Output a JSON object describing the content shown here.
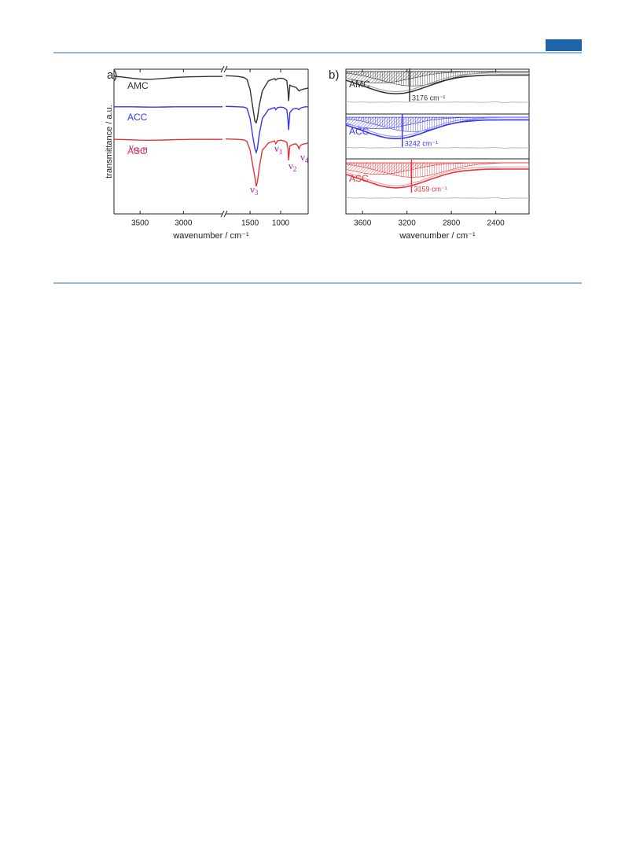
{
  "chart_data": [
    {
      "type": "line",
      "panel": "a)",
      "xlabel": "wavenumber / cm⁻¹",
      "ylabel": "transmittance / a.u.",
      "x": [
        3800,
        3700,
        3600,
        3500,
        3400,
        3300,
        3200,
        3100,
        3000,
        2900,
        2800,
        2700,
        2600,
        2550,
        2200,
        1900,
        1800,
        1700,
        1600,
        1550,
        1500,
        1450,
        1420,
        1400,
        1380,
        1350,
        1300,
        1200,
        1100,
        1080,
        1050,
        1000,
        950,
        900,
        880,
        870,
        860,
        850,
        800,
        750,
        720,
        700,
        680,
        650,
        600,
        550
      ],
      "xlim": [
        3800,
        550
      ],
      "xbreak": [
        2550,
        1900
      ],
      "xticks": [
        3500,
        3000,
        1500,
        1000
      ],
      "ylim": [
        0,
        100
      ],
      "series": [
        {
          "name": "AMC",
          "color": "#333333",
          "values": [
            95.1,
            94.6,
            93.8,
            93.2,
            93.0,
            93.3,
            93.8,
            94.3,
            94.6,
            94.8,
            94.9,
            95,
            95,
            95,
            null,
            95.5,
            95.3,
            95,
            94.3,
            93,
            86,
            72,
            64,
            63,
            66,
            75,
            85,
            92,
            93.5,
            92.5,
            93.5,
            93.8,
            93.5,
            92,
            85,
            78,
            84,
            89,
            88,
            87.5,
            86,
            85,
            85.5,
            86,
            86.5,
            87
          ]
        },
        {
          "name": "ACC",
          "color": "#3535ee",
          "values": [
            74,
            74,
            74,
            73.9,
            73.8,
            73.8,
            73.9,
            74,
            74,
            74,
            74,
            74,
            74,
            74,
            null,
            74.3,
            74.2,
            74,
            73.8,
            73,
            66,
            52,
            45,
            42.5,
            45,
            55,
            66,
            72,
            73.5,
            72,
            73.5,
            73.8,
            73.5,
            72,
            65,
            58,
            64,
            70,
            72.5,
            73,
            72.5,
            72,
            73,
            73.5,
            74,
            74
          ]
        },
        {
          "name": "ASC",
          "color": "#e8333a",
          "values": [
            51.5,
            51.4,
            51.2,
            51,
            50.9,
            51,
            51.1,
            51.3,
            51.4,
            51.5,
            51.5,
            51.5,
            51.5,
            51.5,
            null,
            51.8,
            51.7,
            51.5,
            51.2,
            50,
            44,
            32,
            25,
            19,
            22,
            32,
            44,
            49,
            50.5,
            48.5,
            50.5,
            51,
            50.5,
            49.5,
            45,
            37,
            42,
            47,
            48,
            48.5,
            47,
            45,
            47,
            48,
            48.5,
            49
          ]
        }
      ],
      "annotation_color": "#9b1f9b",
      "annotations": [
        {
          "text": "ν",
          "sub": "O−H"
        },
        {
          "text": "ν",
          "sub": "1"
        },
        {
          "text": "ν",
          "sub": "2"
        },
        {
          "text": "ν",
          "sub": "3"
        },
        {
          "text": "ν",
          "sub": "4"
        }
      ]
    },
    {
      "type": "line",
      "panel": "b)",
      "xlabel": "wavenumber / cm⁻¹",
      "x": [
        3750,
        3675,
        3600,
        3525,
        3450,
        3375,
        3300,
        3225,
        3150,
        3075,
        3000,
        2925,
        2850,
        2775,
        2700,
        2625,
        2550,
        2475,
        2400,
        2325,
        2250,
        2175,
        2100
      ],
      "xlim": [
        3750,
        2100
      ],
      "xticks": [
        3600,
        3200,
        2800,
        2400
      ],
      "ylim": [
        0,
        100
      ],
      "residual_color": "#bbbbbb",
      "series": [
        {
          "name": "AMC",
          "color": "#333333",
          "fit_color": "#aaaaaa",
          "baseline": 98.4,
          "values": [
            92.4,
            90.5,
            88.6,
            86.5,
            84.7,
            83.4,
            83,
            83.4,
            84.7,
            86.5,
            88.6,
            90.5,
            92.4,
            93.7,
            94.7,
            95.2,
            95.6,
            95.9,
            95.9,
            96,
            96,
            96,
            96
          ],
          "fit": [
            93.9,
            92,
            90.1,
            88,
            86.2,
            84.9,
            84.5,
            84.9,
            86.2,
            88,
            90.1,
            92,
            93.9,
            95.2,
            96.2,
            96.7,
            97.1,
            97.4,
            97.4,
            97.5,
            97.5,
            97.5,
            97.5
          ],
          "residual": [
            77.5,
            77.2,
            77.4,
            77,
            77.3,
            77.1,
            77.5,
            77.2,
            77.4,
            77,
            77.3,
            77.2,
            77.1,
            77.4,
            77.2,
            77.3,
            77,
            77.2,
            77.5,
            76.8,
            77.3,
            77.1,
            77.2
          ],
          "components": [
            [
              93.8,
              92.6,
              91.4,
              90.6,
              90.4,
              90.6,
              91.4,
              92.6,
              93.8,
              95,
              96.2,
              97,
              97.6,
              97.9,
              98.2,
              98.3,
              98.3,
              98.4,
              98.4,
              98.4,
              98.4,
              98.4,
              98.4
            ],
            [
              97.4,
              96.6,
              95.6,
              94.2,
              92.7,
              91.1,
              89.7,
              88.7,
              88.4,
              88.7,
              89.7,
              91.1,
              92.7,
              94.2,
              95.6,
              96.6,
              97.4,
              97.8,
              98.1,
              98.3,
              98.3,
              98.4,
              98.4
            ]
          ],
          "marker": {
            "value": 3176,
            "label": "3176 cm⁻¹"
          }
        },
        {
          "name": "ACC",
          "color": "#3535ee",
          "fit_color": "#9fa0ff",
          "baseline": 66.8,
          "values": [
            61.4,
            59.5,
            57.6,
            55.5,
            53.7,
            52.4,
            52,
            52.4,
            53.7,
            55.5,
            57.6,
            59.5,
            61.4,
            62.7,
            63.7,
            64.2,
            64.6,
            64.9,
            64.9,
            65,
            65,
            65,
            65
          ],
          "fit": [
            62.9,
            61,
            59.1,
            57,
            55.2,
            53.9,
            53.5,
            53.9,
            55.2,
            57,
            59.1,
            61,
            62.9,
            64.2,
            65.2,
            65.7,
            66.1,
            66.4,
            66.4,
            66.5,
            66.5,
            66.5,
            66.5
          ],
          "residual": [
            46,
            45.7,
            45.9,
            45.5,
            45.8,
            45.6,
            46,
            45.7,
            45.9,
            45.5,
            45.8,
            45.7,
            45.6,
            45.9,
            45.7,
            45.8,
            45.5,
            45.7,
            46,
            45.3,
            45.8,
            45.6,
            45.7
          ],
          "components": [
            [
              62.2,
              61,
              59.8,
              59,
              58.8,
              59,
              59.8,
              61,
              62.2,
              63.4,
              64.6,
              65.4,
              66,
              66.3,
              66.6,
              66.7,
              66.7,
              66.8,
              66.8,
              66.8,
              66.8,
              66.8,
              66.8
            ],
            [
              65.8,
              65,
              64,
              62.6,
              61.1,
              59.5,
              58.1,
              57.1,
              56.8,
              57.1,
              58.1,
              59.5,
              61.1,
              62.6,
              64,
              65,
              65.8,
              66.2,
              66.5,
              66.7,
              66.7,
              66.8,
              66.8
            ]
          ],
          "marker": {
            "value": 3242,
            "label": "3242 cm⁻¹"
          }
        },
        {
          "name": "ASC",
          "color": "#e8333a",
          "fit_color": "#f4a6a6",
          "baseline": 35.3,
          "values": [
            27.4,
            25.5,
            23.6,
            21.5,
            19.7,
            18.4,
            18,
            18.4,
            19.7,
            21.5,
            23.6,
            25.5,
            27.4,
            28.7,
            29.7,
            30.2,
            30.6,
            30.9,
            30.9,
            31,
            31,
            31,
            31
          ],
          "fit": [
            28.9,
            27,
            25.1,
            23,
            21.2,
            19.9,
            19.5,
            19.9,
            21.2,
            23,
            25.1,
            27,
            28.9,
            30.2,
            31.2,
            31.7,
            32.1,
            32.4,
            32.4,
            32.5,
            32.5,
            32.5,
            32.5
          ],
          "residual": [
            11.2,
            10.9,
            11.1,
            10.7,
            11,
            10.8,
            11.2,
            10.9,
            11.1,
            10.7,
            11,
            10.9,
            10.8,
            11.1,
            10.9,
            11,
            10.7,
            10.9,
            11.2,
            10.5,
            11,
            10.8,
            10.9
          ],
          "components": [
            [
              30.7,
              29.5,
              28.3,
              27.5,
              27.3,
              27.5,
              28.3,
              29.5,
              30.7,
              31.9,
              33.1,
              33.9,
              34.5,
              34.8,
              35.1,
              35.2,
              35.2,
              35.3,
              35.3,
              35.3,
              35.3,
              35.3,
              35.3
            ],
            [
              34.3,
              33.5,
              32.5,
              31.1,
              29.6,
              28,
              26.6,
              25.6,
              25.3,
              25.6,
              26.6,
              28,
              29.6,
              31.1,
              32.5,
              33.5,
              34.3,
              34.7,
              35,
              35.2,
              35.2,
              35.3,
              35.3
            ]
          ],
          "marker": {
            "value": 3159,
            "label": "3159 cm⁻¹"
          }
        }
      ]
    }
  ]
}
